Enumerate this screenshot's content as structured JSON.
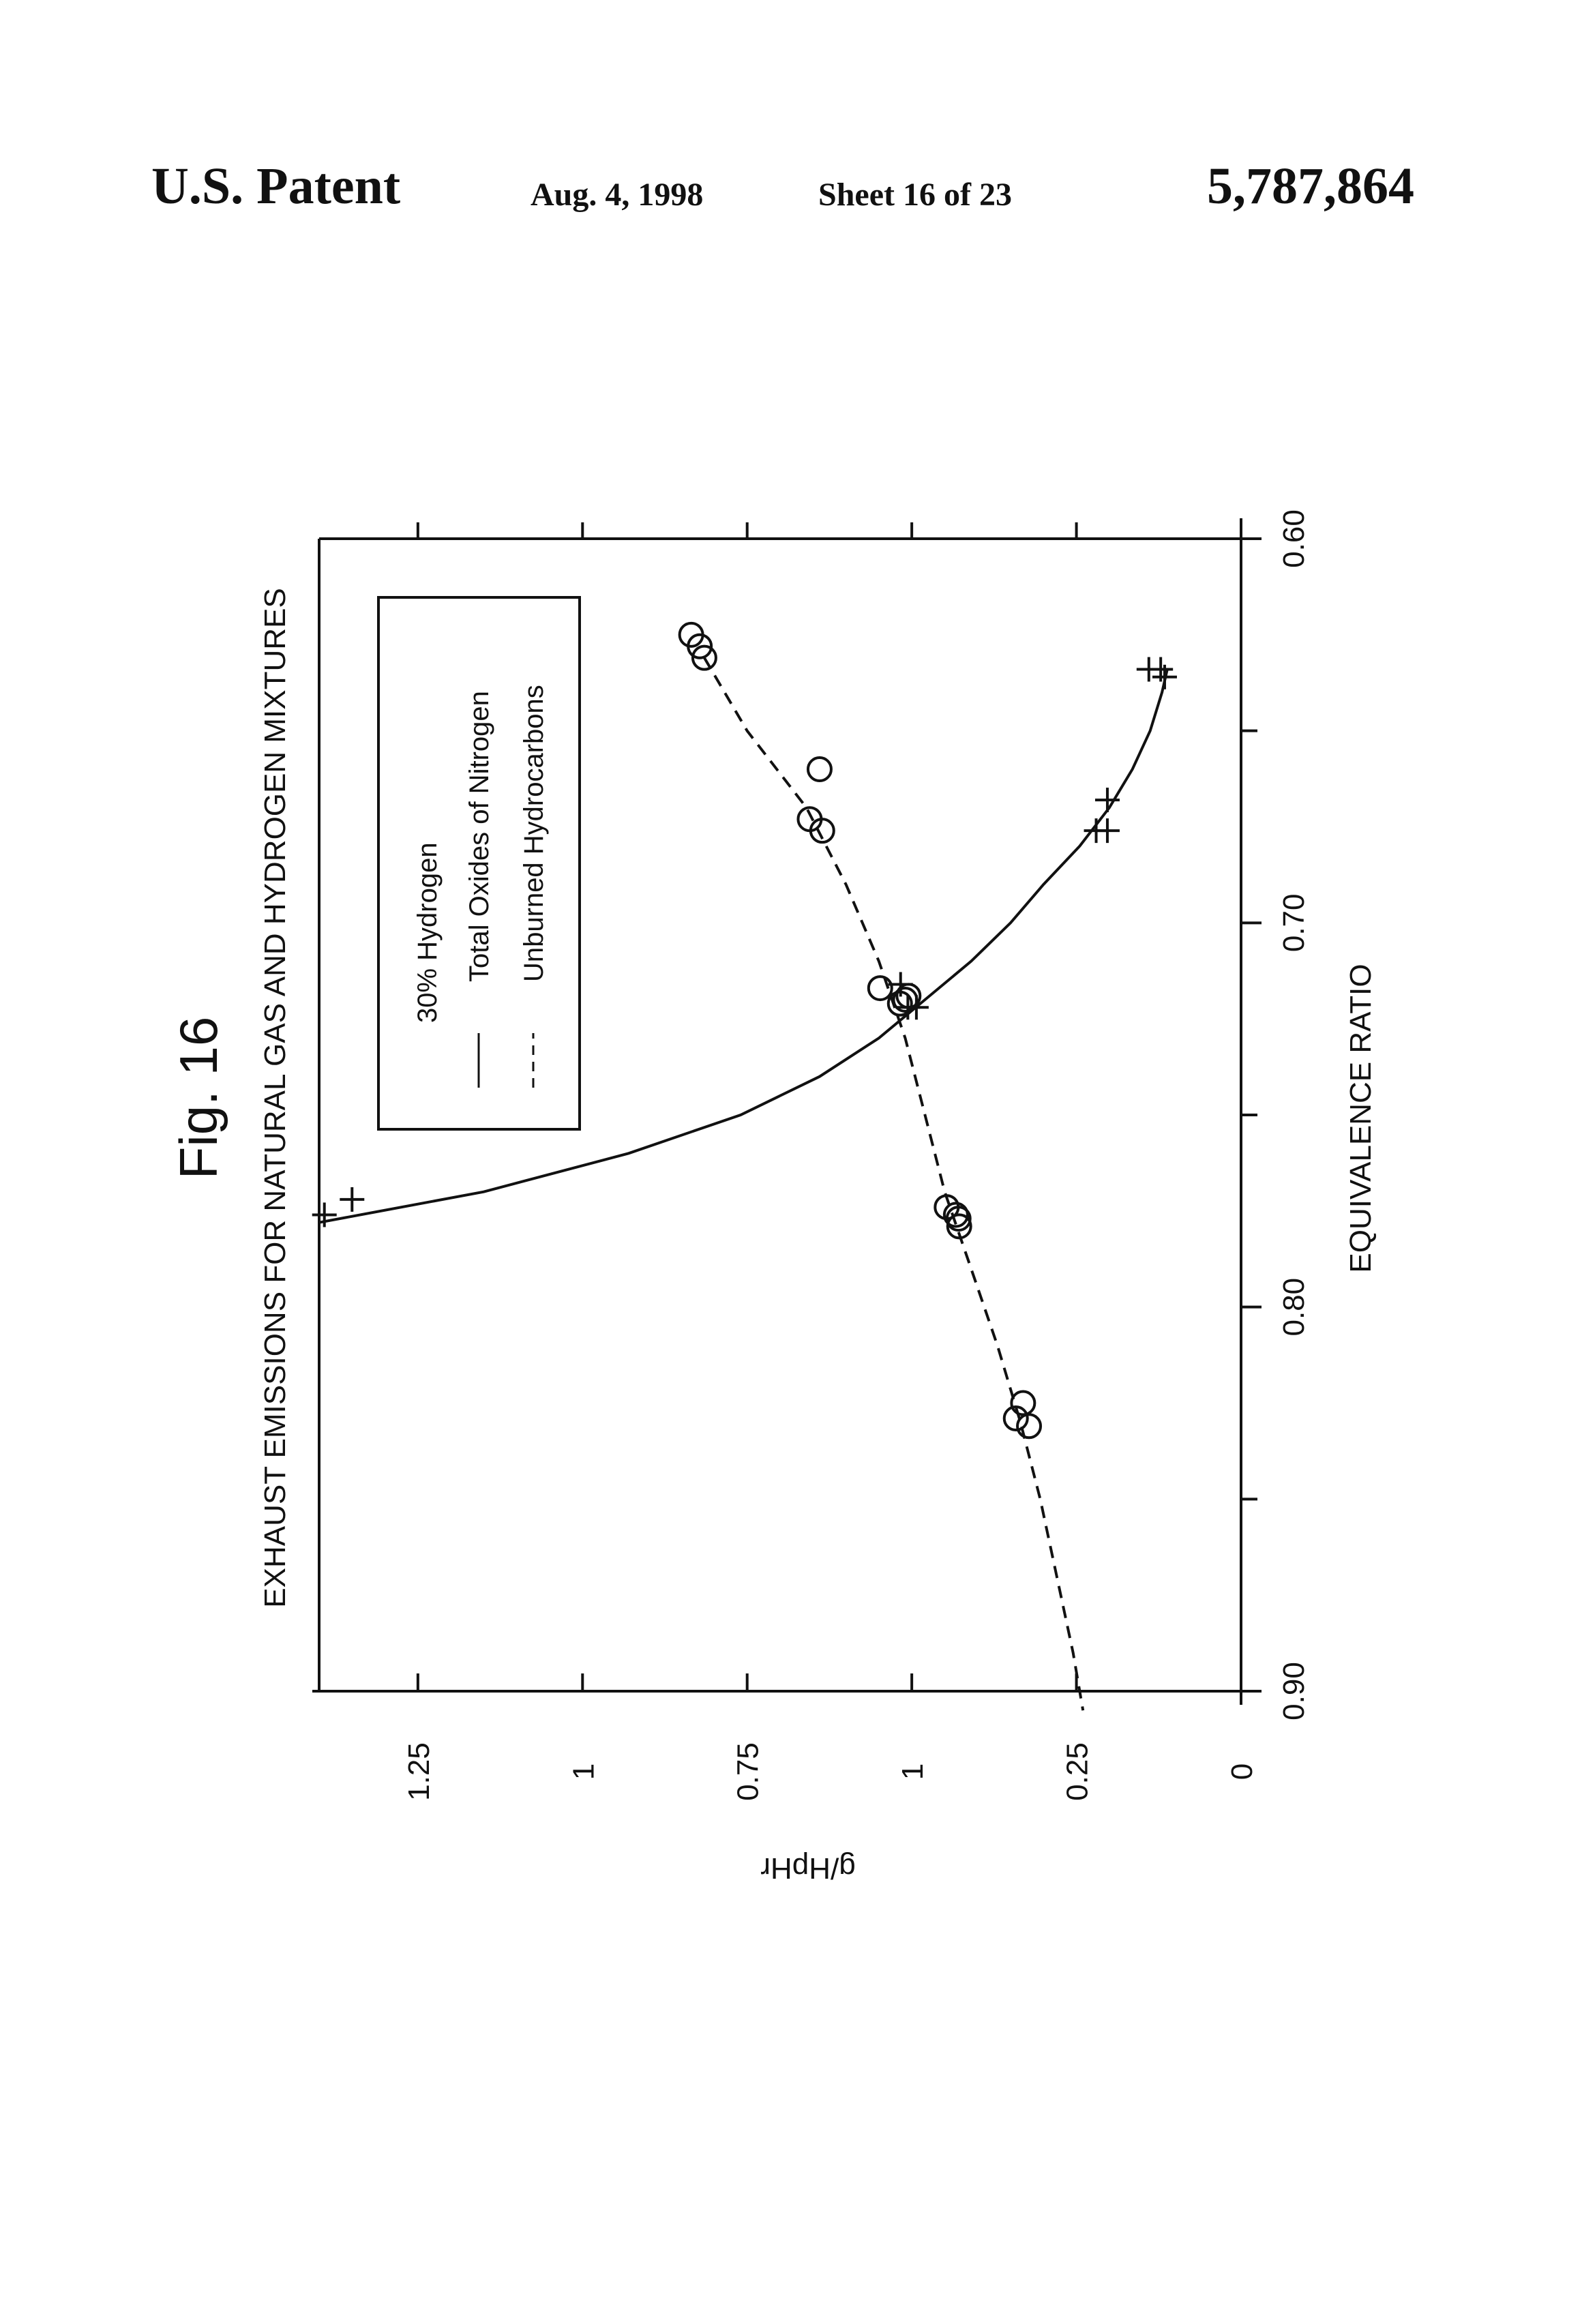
{
  "header": {
    "patent_label": "U.S. Patent",
    "date": "Aug. 4, 1998",
    "sheet": "Sheet 16 of 23",
    "patent_number": "5,787,864"
  },
  "figure_label": "Fig. 16",
  "chart_data": {
    "type": "scatter",
    "title": "EXHAUST EMISSIONS FOR NATURAL GAS AND HYDROGEN MIXTURES",
    "xlabel": "EQUIVALENCE RATIO",
    "ylabel": "g/HpHr",
    "xlim": [
      0.9,
      0.6
    ],
    "ylim": [
      0,
      1.4
    ],
    "x_ticks": [
      0.9,
      0.8,
      0.7,
      0.6
    ],
    "x_tick_labels": [
      "0.90",
      "0.80",
      "0.70",
      "0.60"
    ],
    "y_ticks": [
      0,
      0.25,
      0.5,
      0.75,
      1,
      1.25
    ],
    "y_tick_labels": [
      "0",
      "0.25",
      "1",
      "0.75",
      "1",
      "1.25"
    ],
    "grid": false,
    "legend_position": "top-right",
    "legend_title": "30% Hydrogen",
    "series": [
      {
        "name": "Total Oxides of Nitrogen",
        "marker": "plus",
        "line": "solid",
        "points": [
          [
            0.776,
            1.392
          ],
          [
            0.772,
            1.35
          ],
          [
            0.716,
            0.517
          ],
          [
            0.722,
            0.493
          ],
          [
            0.722,
            0.506
          ],
          [
            0.676,
            0.203
          ],
          [
            0.676,
            0.22
          ],
          [
            0.668,
            0.203
          ],
          [
            0.636,
            0.116
          ],
          [
            0.634,
            0.14
          ],
          [
            0.634,
            0.122
          ]
        ],
        "fit": [
          [
            0.778,
            1.4
          ],
          [
            0.77,
            1.15
          ],
          [
            0.76,
            0.93
          ],
          [
            0.75,
            0.76
          ],
          [
            0.74,
            0.64
          ],
          [
            0.73,
            0.55
          ],
          [
            0.72,
            0.48
          ],
          [
            0.71,
            0.41
          ],
          [
            0.7,
            0.35
          ],
          [
            0.69,
            0.3
          ],
          [
            0.68,
            0.245
          ],
          [
            0.67,
            0.2
          ],
          [
            0.66,
            0.165
          ],
          [
            0.65,
            0.138
          ],
          [
            0.64,
            0.12
          ],
          [
            0.634,
            0.112
          ]
        ]
      },
      {
        "name": "Unburned Hydrocarbons",
        "marker": "circle",
        "line": "dashed",
        "points": [
          [
            0.625,
            0.835
          ],
          [
            0.628,
            0.822
          ],
          [
            0.631,
            0.815
          ],
          [
            0.66,
            0.64
          ],
          [
            0.673,
            0.655
          ],
          [
            0.676,
            0.636
          ],
          [
            0.717,
            0.548
          ],
          [
            0.721,
            0.518
          ],
          [
            0.72,
            0.51
          ],
          [
            0.719,
            0.505
          ],
          [
            0.774,
            0.447
          ],
          [
            0.777,
            0.429
          ],
          [
            0.776,
            0.433
          ],
          [
            0.779,
            0.428
          ],
          [
            0.825,
            0.331
          ],
          [
            0.829,
            0.342
          ],
          [
            0.831,
            0.322
          ]
        ],
        "fit": [
          [
            0.631,
            0.815
          ],
          [
            0.65,
            0.75
          ],
          [
            0.67,
            0.66
          ],
          [
            0.69,
            0.6
          ],
          [
            0.71,
            0.55
          ],
          [
            0.73,
            0.51
          ],
          [
            0.75,
            0.48
          ],
          [
            0.77,
            0.45
          ],
          [
            0.79,
            0.41
          ],
          [
            0.81,
            0.37
          ],
          [
            0.83,
            0.335
          ],
          [
            0.85,
            0.305
          ],
          [
            0.87,
            0.28
          ],
          [
            0.89,
            0.255
          ],
          [
            0.905,
            0.24
          ]
        ]
      }
    ]
  }
}
